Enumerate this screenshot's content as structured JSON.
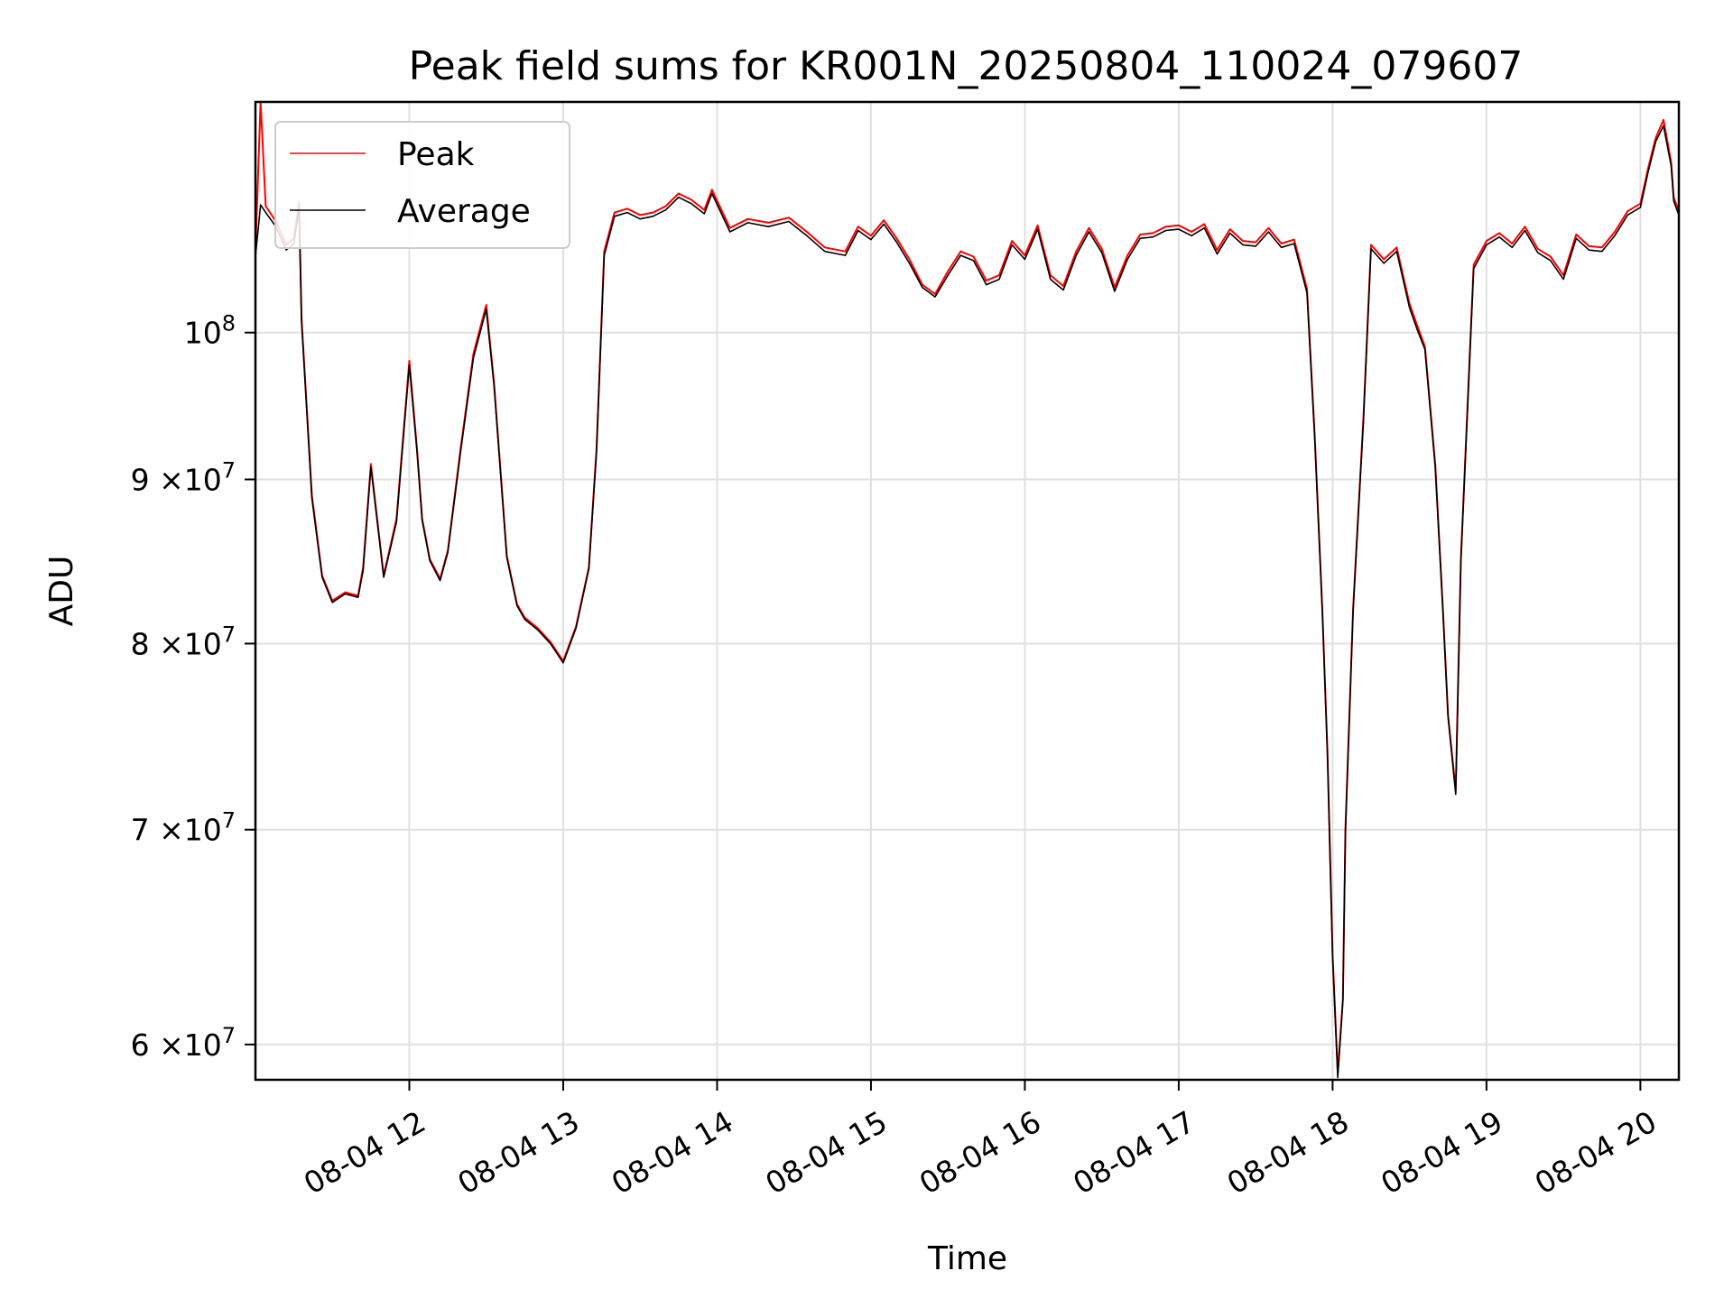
{
  "chart_data": {
    "type": "line",
    "title": "Peak field sums for KR001N_20250804_110024_079607",
    "xlabel": "Time",
    "ylabel": "ADU",
    "yscale": "log",
    "grid": true,
    "legend_position": "top-left",
    "xlim": [
      "2025-08-04 11:00",
      "2025-08-04 20:15"
    ],
    "ylim": [
      58500000,
      118000000
    ],
    "x_ticks": [
      "08-04 12",
      "08-04 13",
      "08-04 14",
      "08-04 15",
      "08-04 16",
      "08-04 17",
      "08-04 18",
      "08-04 19",
      "08-04 20"
    ],
    "x_tick_times": [
      "2025-08-04 12:00",
      "2025-08-04 13:00",
      "2025-08-04 14:00",
      "2025-08-04 15:00",
      "2025-08-04 16:00",
      "2025-08-04 17:00",
      "2025-08-04 18:00",
      "2025-08-04 19:00",
      "2025-08-04 20:00"
    ],
    "y_ticks": [
      {
        "value": 60000000,
        "mantissa": "6",
        "exponent": "7"
      },
      {
        "value": 70000000,
        "mantissa": "7",
        "exponent": "7"
      },
      {
        "value": 80000000,
        "mantissa": "8",
        "exponent": "7"
      },
      {
        "value": 90000000,
        "mantissa": "9",
        "exponent": "7"
      },
      {
        "value": 100000000,
        "mantissa": "",
        "exponent": "8"
      }
    ],
    "tick_times_label": "×10",
    "series": [
      {
        "name": "Peak",
        "color": "#ff0000",
        "x": [
          "2025-08-04 11:00",
          "2025-08-04 11:02",
          "2025-08-04 11:04",
          "2025-08-04 11:08",
          "2025-08-04 11:12",
          "2025-08-04 11:15",
          "2025-08-04 11:17",
          "2025-08-04 11:18",
          "2025-08-04 11:22",
          "2025-08-04 11:26",
          "2025-08-04 11:30",
          "2025-08-04 11:35",
          "2025-08-04 11:40",
          "2025-08-04 11:42",
          "2025-08-04 11:45",
          "2025-08-04 11:50",
          "2025-08-04 11:55",
          "2025-08-04 12:00",
          "2025-08-04 12:03",
          "2025-08-04 12:05",
          "2025-08-04 12:08",
          "2025-08-04 12:12",
          "2025-08-04 12:15",
          "2025-08-04 12:20",
          "2025-08-04 12:25",
          "2025-08-04 12:30",
          "2025-08-04 12:33",
          "2025-08-04 12:38",
          "2025-08-04 12:42",
          "2025-08-04 12:45",
          "2025-08-04 12:50",
          "2025-08-04 12:55",
          "2025-08-04 13:00",
          "2025-08-04 13:05",
          "2025-08-04 13:10",
          "2025-08-04 13:13",
          "2025-08-04 13:16",
          "2025-08-04 13:20",
          "2025-08-04 13:25",
          "2025-08-04 13:30",
          "2025-08-04 13:35",
          "2025-08-04 13:40",
          "2025-08-04 13:45",
          "2025-08-04 13:50",
          "2025-08-04 13:55",
          "2025-08-04 13:58",
          "2025-08-04 14:05",
          "2025-08-04 14:12",
          "2025-08-04 14:20",
          "2025-08-04 14:28",
          "2025-08-04 14:35",
          "2025-08-04 14:42",
          "2025-08-04 14:50",
          "2025-08-04 14:55",
          "2025-08-04 15:00",
          "2025-08-04 15:05",
          "2025-08-04 15:10",
          "2025-08-04 15:15",
          "2025-08-04 15:20",
          "2025-08-04 15:25",
          "2025-08-04 15:30",
          "2025-08-04 15:35",
          "2025-08-04 15:40",
          "2025-08-04 15:45",
          "2025-08-04 15:50",
          "2025-08-04 15:55",
          "2025-08-04 16:00",
          "2025-08-04 16:05",
          "2025-08-04 16:10",
          "2025-08-04 16:15",
          "2025-08-04 16:20",
          "2025-08-04 16:25",
          "2025-08-04 16:30",
          "2025-08-04 16:35",
          "2025-08-04 16:40",
          "2025-08-04 16:45",
          "2025-08-04 16:50",
          "2025-08-04 16:55",
          "2025-08-04 17:00",
          "2025-08-04 17:05",
          "2025-08-04 17:10",
          "2025-08-04 17:15",
          "2025-08-04 17:20",
          "2025-08-04 17:25",
          "2025-08-04 17:30",
          "2025-08-04 17:35",
          "2025-08-04 17:40",
          "2025-08-04 17:45",
          "2025-08-04 17:50",
          "2025-08-04 17:53",
          "2025-08-04 17:56",
          "2025-08-04 17:58",
          "2025-08-04 18:00",
          "2025-08-04 18:02",
          "2025-08-04 18:04",
          "2025-08-04 18:05",
          "2025-08-04 18:08",
          "2025-08-04 18:12",
          "2025-08-04 18:15",
          "2025-08-04 18:20",
          "2025-08-04 18:25",
          "2025-08-04 18:30",
          "2025-08-04 18:33",
          "2025-08-04 18:36",
          "2025-08-04 18:40",
          "2025-08-04 18:43",
          "2025-08-04 18:45",
          "2025-08-04 18:48",
          "2025-08-04 18:50",
          "2025-08-04 18:55",
          "2025-08-04 19:00",
          "2025-08-04 19:05",
          "2025-08-04 19:10",
          "2025-08-04 19:15",
          "2025-08-04 19:20",
          "2025-08-04 19:25",
          "2025-08-04 19:30",
          "2025-08-04 19:35",
          "2025-08-04 19:40",
          "2025-08-04 19:45",
          "2025-08-04 19:50",
          "2025-08-04 19:55",
          "2025-08-04 20:00",
          "2025-08-04 20:03",
          "2025-08-04 20:06",
          "2025-08-04 20:09",
          "2025-08-04 20:12",
          "2025-08-04 20:13",
          "2025-08-04 20:15"
        ],
        "y": [
          106000000,
          118000000,
          109500000,
          108300000,
          106500000,
          107000000,
          109800000,
          101000000,
          89000000,
          84000000,
          82500000,
          83000000,
          82800000,
          84500000,
          91000000,
          84000000,
          87500000,
          98000000,
          92000000,
          87500000,
          85000000,
          83800000,
          85500000,
          92000000,
          98500000,
          102000000,
          96500000,
          85200000,
          82300000,
          81500000,
          80900000,
          80100000,
          79000000,
          81000000,
          84500000,
          92000000,
          106000000,
          109000000,
          109300000,
          108800000,
          109000000,
          109500000,
          110500000,
          110000000,
          109200000,
          110800000,
          107800000,
          108500000,
          108200000,
          108600000,
          107500000,
          106300000,
          106000000,
          107900000,
          107200000,
          108400000,
          107000000,
          105400000,
          103500000,
          102800000,
          104500000,
          106000000,
          105600000,
          103800000,
          104200000,
          106800000,
          105700000,
          108000000,
          104200000,
          103400000,
          106000000,
          107800000,
          106200000,
          103300000,
          105700000,
          107300000,
          107400000,
          107900000,
          108000000,
          107500000,
          108100000,
          106100000,
          107700000,
          106800000,
          106700000,
          107800000,
          106600000,
          106900000,
          103200000,
          93000000,
          82000000,
          74000000,
          64000000,
          58800000,
          62000000,
          70000000,
          82000000,
          94000000,
          106500000,
          105400000,
          106300000,
          102100000,
          100500000,
          99000000,
          91000000,
          82000000,
          76000000,
          72000000,
          85000000,
          105000000,
          106800000,
          107400000,
          106600000,
          107900000,
          106200000,
          105600000,
          104200000,
          107300000,
          106400000,
          106300000,
          107500000,
          109100000,
          109700000,
          112500000,
          115000000,
          116500000,
          113000000,
          110200000,
          109100000
        ]
      },
      {
        "name": "Average",
        "color": "#000000",
        "x": [
          "2025-08-04 11:00",
          "2025-08-04 11:02",
          "2025-08-04 11:04",
          "2025-08-04 11:08",
          "2025-08-04 11:12",
          "2025-08-04 11:15",
          "2025-08-04 11:17",
          "2025-08-04 11:18",
          "2025-08-04 11:22",
          "2025-08-04 11:26",
          "2025-08-04 11:30",
          "2025-08-04 11:35",
          "2025-08-04 11:40",
          "2025-08-04 11:42",
          "2025-08-04 11:45",
          "2025-08-04 11:50",
          "2025-08-04 11:55",
          "2025-08-04 12:00",
          "2025-08-04 12:03",
          "2025-08-04 12:05",
          "2025-08-04 12:08",
          "2025-08-04 12:12",
          "2025-08-04 12:15",
          "2025-08-04 12:20",
          "2025-08-04 12:25",
          "2025-08-04 12:30",
          "2025-08-04 12:33",
          "2025-08-04 12:38",
          "2025-08-04 12:42",
          "2025-08-04 12:45",
          "2025-08-04 12:50",
          "2025-08-04 12:55",
          "2025-08-04 13:00",
          "2025-08-04 13:05",
          "2025-08-04 13:10",
          "2025-08-04 13:13",
          "2025-08-04 13:16",
          "2025-08-04 13:20",
          "2025-08-04 13:25",
          "2025-08-04 13:30",
          "2025-08-04 13:35",
          "2025-08-04 13:40",
          "2025-08-04 13:45",
          "2025-08-04 13:50",
          "2025-08-04 13:55",
          "2025-08-04 13:58",
          "2025-08-04 14:05",
          "2025-08-04 14:12",
          "2025-08-04 14:20",
          "2025-08-04 14:28",
          "2025-08-04 14:35",
          "2025-08-04 14:42",
          "2025-08-04 14:50",
          "2025-08-04 14:55",
          "2025-08-04 15:00",
          "2025-08-04 15:05",
          "2025-08-04 15:10",
          "2025-08-04 15:15",
          "2025-08-04 15:20",
          "2025-08-04 15:25",
          "2025-08-04 15:30",
          "2025-08-04 15:35",
          "2025-08-04 15:40",
          "2025-08-04 15:45",
          "2025-08-04 15:50",
          "2025-08-04 15:55",
          "2025-08-04 16:00",
          "2025-08-04 16:05",
          "2025-08-04 16:10",
          "2025-08-04 16:15",
          "2025-08-04 16:20",
          "2025-08-04 16:25",
          "2025-08-04 16:30",
          "2025-08-04 16:35",
          "2025-08-04 16:40",
          "2025-08-04 16:45",
          "2025-08-04 16:50",
          "2025-08-04 16:55",
          "2025-08-04 17:00",
          "2025-08-04 17:05",
          "2025-08-04 17:10",
          "2025-08-04 17:15",
          "2025-08-04 17:20",
          "2025-08-04 17:25",
          "2025-08-04 17:30",
          "2025-08-04 17:35",
          "2025-08-04 17:40",
          "2025-08-04 17:45",
          "2025-08-04 17:50",
          "2025-08-04 17:53",
          "2025-08-04 17:56",
          "2025-08-04 17:58",
          "2025-08-04 18:00",
          "2025-08-04 18:02",
          "2025-08-04 18:04",
          "2025-08-04 18:05",
          "2025-08-04 18:08",
          "2025-08-04 18:12",
          "2025-08-04 18:15",
          "2025-08-04 18:20",
          "2025-08-04 18:25",
          "2025-08-04 18:30",
          "2025-08-04 18:33",
          "2025-08-04 18:36",
          "2025-08-04 18:40",
          "2025-08-04 18:43",
          "2025-08-04 18:45",
          "2025-08-04 18:48",
          "2025-08-04 18:50",
          "2025-08-04 18:55",
          "2025-08-04 19:00",
          "2025-08-04 19:05",
          "2025-08-04 19:10",
          "2025-08-04 19:15",
          "2025-08-04 19:20",
          "2025-08-04 19:25",
          "2025-08-04 19:30",
          "2025-08-04 19:35",
          "2025-08-04 19:40",
          "2025-08-04 19:45",
          "2025-08-04 19:50",
          "2025-08-04 19:55",
          "2025-08-04 20:00",
          "2025-08-04 20:03",
          "2025-08-04 20:06",
          "2025-08-04 20:09",
          "2025-08-04 20:12",
          "2025-08-04 20:13",
          "2025-08-04 20:15"
        ],
        "y": [
          105600000,
          109600000,
          109000000,
          107900000,
          106100000,
          106600000,
          109300000,
          100800000,
          88800000,
          83900000,
          82400000,
          82900000,
          82700000,
          84300000,
          90800000,
          83900000,
          87300000,
          97700000,
          91800000,
          87400000,
          84900000,
          83700000,
          85400000,
          91800000,
          98200000,
          101700000,
          96300000,
          85100000,
          82200000,
          81400000,
          80800000,
          80000000,
          78900000,
          80900000,
          84400000,
          91800000,
          105700000,
          108700000,
          109000000,
          108500000,
          108700000,
          109200000,
          110200000,
          109700000,
          108900000,
          110500000,
          107500000,
          108200000,
          107900000,
          108300000,
          107200000,
          106000000,
          105700000,
          107600000,
          106900000,
          108100000,
          106700000,
          105100000,
          103300000,
          102600000,
          104200000,
          105700000,
          105300000,
          103500000,
          103900000,
          106500000,
          105400000,
          107700000,
          103900000,
          103100000,
          105700000,
          107500000,
          105900000,
          103000000,
          105400000,
          107000000,
          107100000,
          107600000,
          107700000,
          107200000,
          107800000,
          105800000,
          107400000,
          106500000,
          106400000,
          107500000,
          106300000,
          106600000,
          102900000,
          92800000,
          81900000,
          73900000,
          63900000,
          58600000,
          61900000,
          69900000,
          81900000,
          93800000,
          106200000,
          105100000,
          106000000,
          101800000,
          100200000,
          98800000,
          90800000,
          81900000,
          75900000,
          71800000,
          84800000,
          104700000,
          106500000,
          107100000,
          106300000,
          107600000,
          105900000,
          105300000,
          103900000,
          107000000,
          106100000,
          106000000,
          107200000,
          108800000,
          109400000,
          112200000,
          114700000,
          116000000,
          112700000,
          109900000,
          108800000
        ]
      }
    ]
  }
}
